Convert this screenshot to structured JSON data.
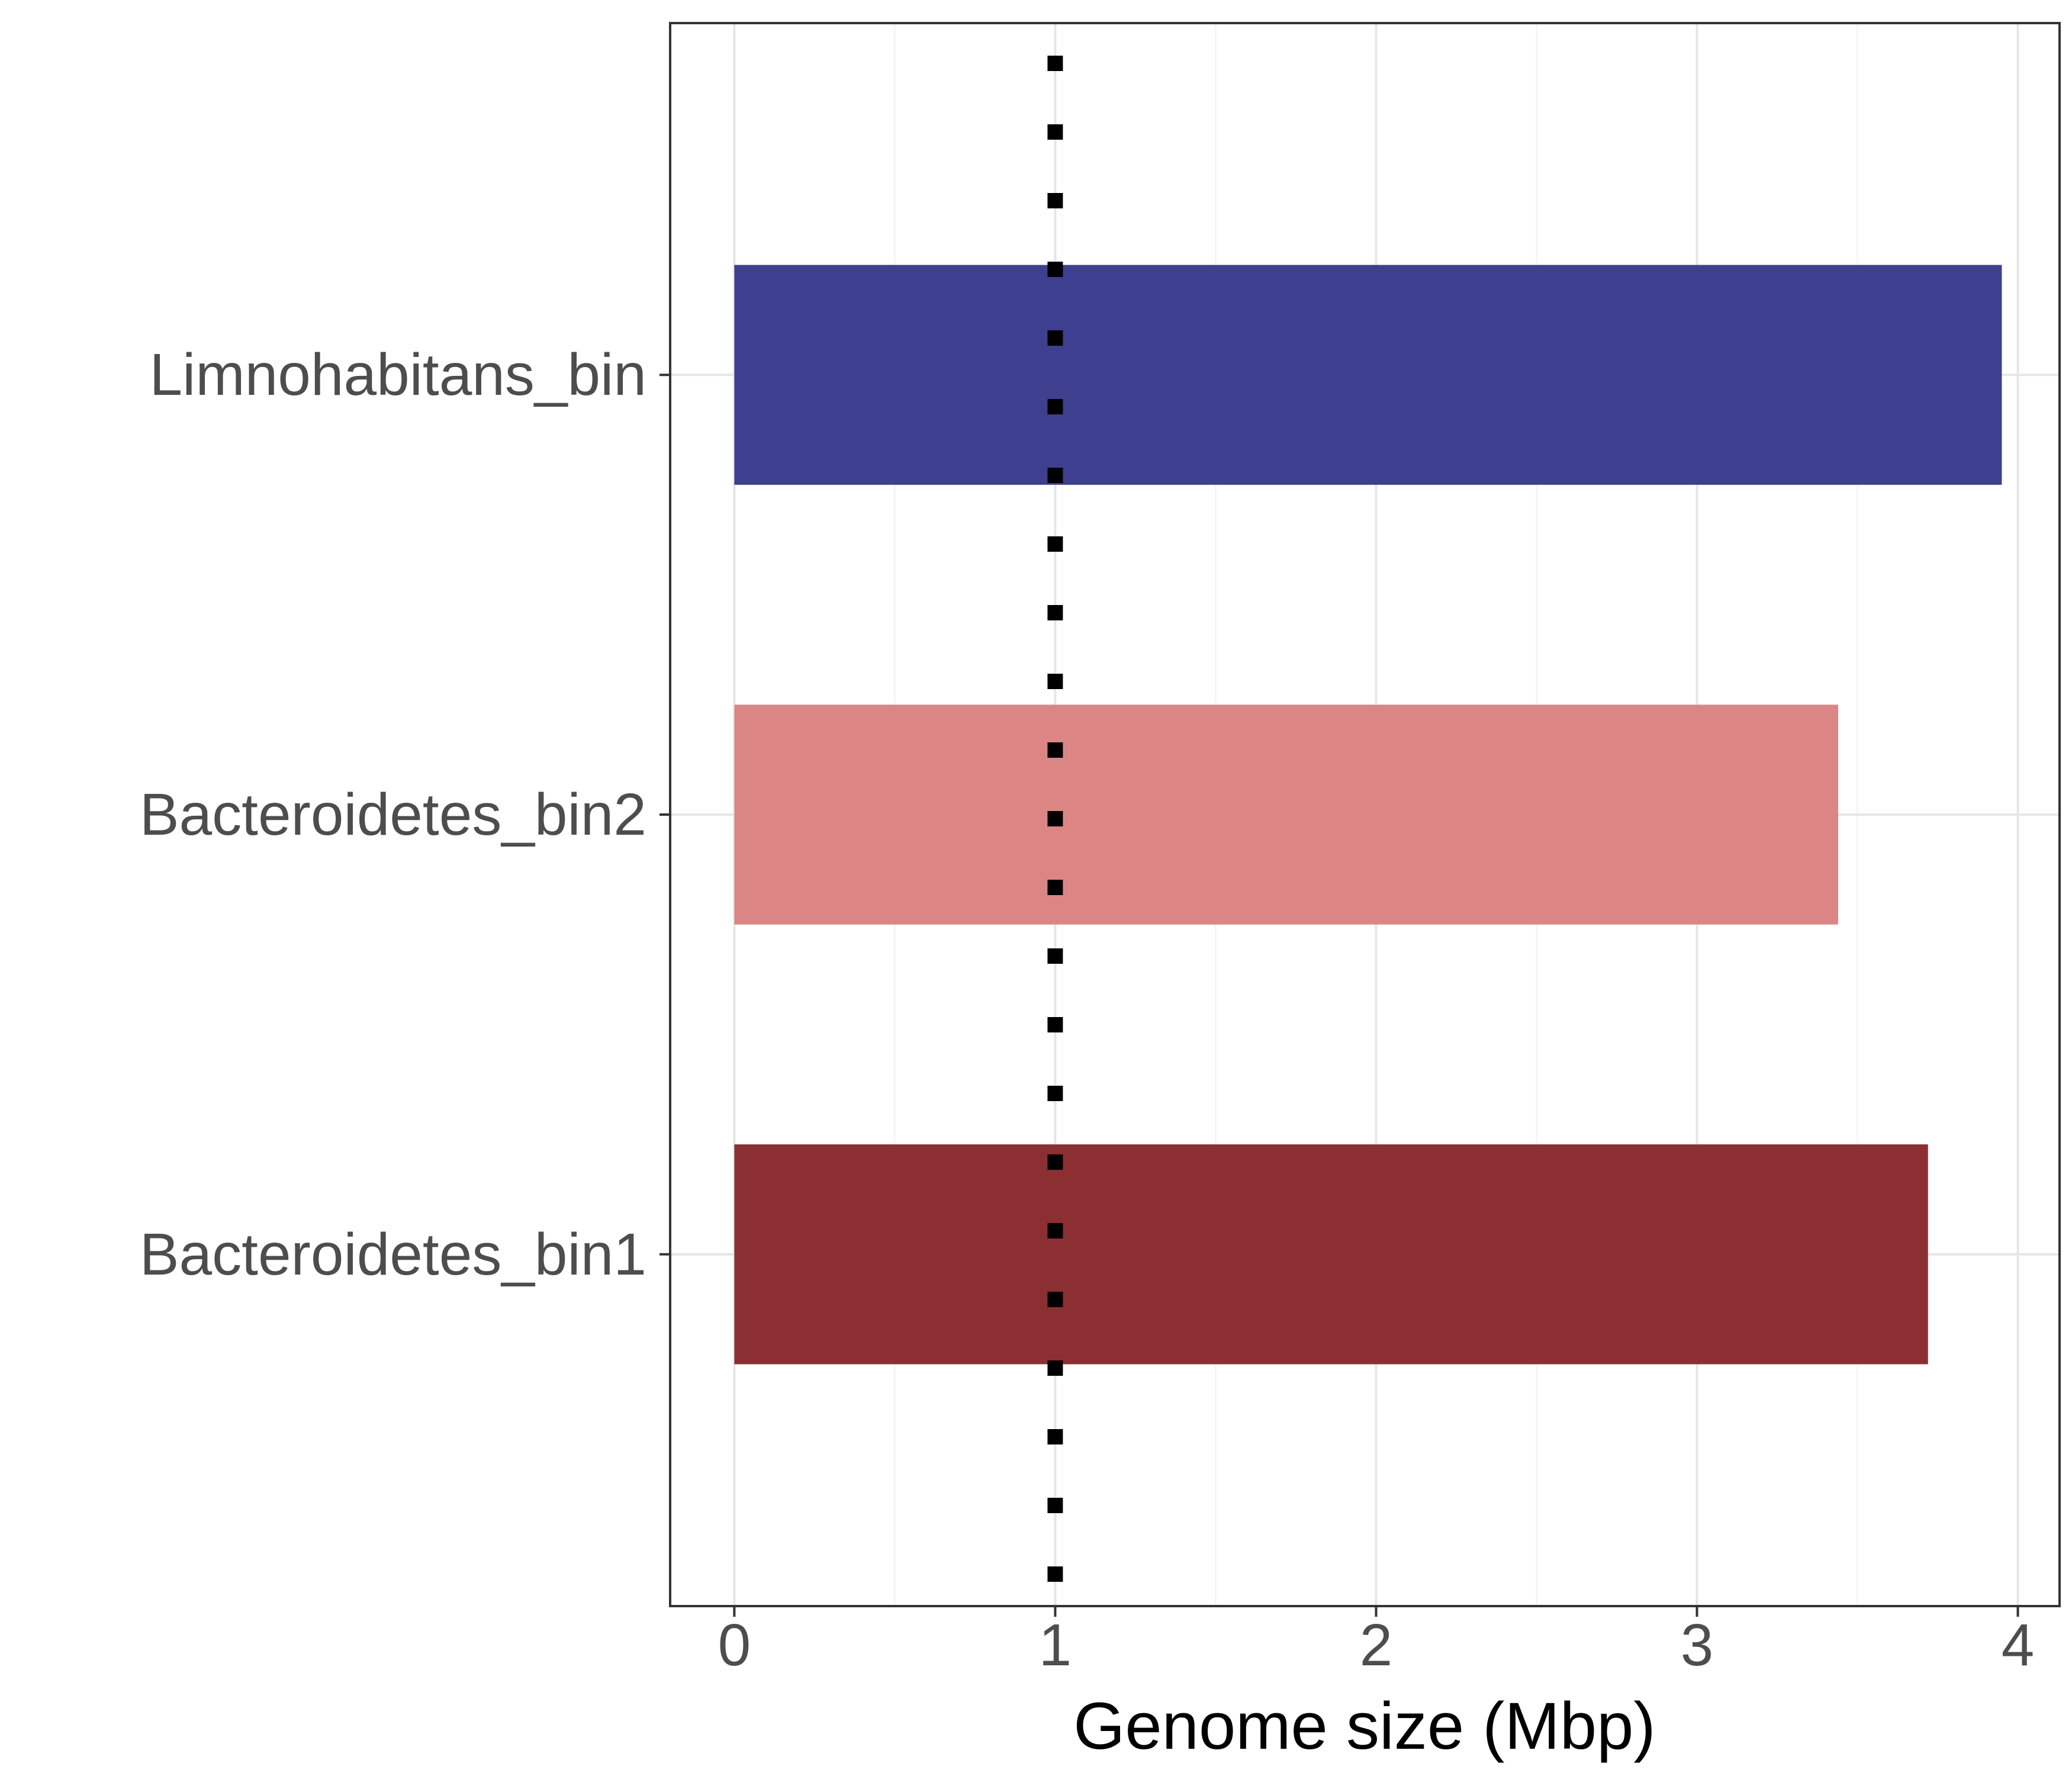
{
  "chart_data": {
    "type": "bar",
    "orientation": "horizontal",
    "categories": [
      "Limnohabitans_bin",
      "Bacteroidetes_bin2",
      "Bacteroidetes_bin1"
    ],
    "values": [
      3.95,
      3.44,
      3.72
    ],
    "colors": [
      "#3f3f8f",
      "#db8685",
      "#8b2f33"
    ],
    "xlabel": "Genome size (Mbp)",
    "ylabel": "",
    "xlim": [
      -0.2,
      4.13
    ],
    "x_ticks": [
      "0",
      "1",
      "2",
      "3",
      "4"
    ],
    "reference_line": {
      "x": 1,
      "style": "dotted",
      "color": "#000000"
    },
    "grid": true,
    "legend": "none"
  }
}
